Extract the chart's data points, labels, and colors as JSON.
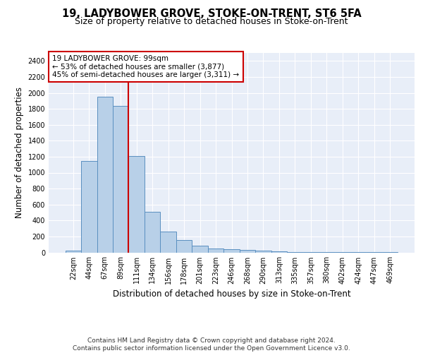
{
  "title": "19, LADYBOWER GROVE, STOKE-ON-TRENT, ST6 5FA",
  "subtitle": "Size of property relative to detached houses in Stoke-on-Trent",
  "xlabel": "Distribution of detached houses by size in Stoke-on-Trent",
  "ylabel": "Number of detached properties",
  "categories": [
    "22sqm",
    "44sqm",
    "67sqm",
    "89sqm",
    "111sqm",
    "134sqm",
    "156sqm",
    "178sqm",
    "201sqm",
    "223sqm",
    "246sqm",
    "268sqm",
    "290sqm",
    "313sqm",
    "335sqm",
    "357sqm",
    "380sqm",
    "402sqm",
    "424sqm",
    "447sqm",
    "469sqm"
  ],
  "values": [
    25,
    1150,
    1950,
    1840,
    1210,
    510,
    265,
    155,
    88,
    50,
    40,
    35,
    22,
    15,
    8,
    5,
    4,
    3,
    2,
    2,
    2
  ],
  "bar_color": "#b8d0e8",
  "bar_edge_color": "#5a8fc0",
  "vline_x": 3.5,
  "vline_color": "#cc0000",
  "annotation_text": "19 LADYBOWER GROVE: 99sqm\n← 53% of detached houses are smaller (3,877)\n45% of semi-detached houses are larger (3,311) →",
  "annotation_box_color": "#ffffff",
  "annotation_box_edge": "#cc0000",
  "ylim": [
    0,
    2500
  ],
  "yticks": [
    0,
    200,
    400,
    600,
    800,
    1000,
    1200,
    1400,
    1600,
    1800,
    2000,
    2200,
    2400
  ],
  "background_color": "#e8eef8",
  "grid_color": "#ffffff",
  "footer_text": "Contains HM Land Registry data © Crown copyright and database right 2024.\nContains public sector information licensed under the Open Government Licence v3.0.",
  "title_fontsize": 10.5,
  "subtitle_fontsize": 9,
  "xlabel_fontsize": 8.5,
  "ylabel_fontsize": 8.5,
  "tick_fontsize": 7,
  "annotation_fontsize": 7.5,
  "footer_fontsize": 6.5
}
